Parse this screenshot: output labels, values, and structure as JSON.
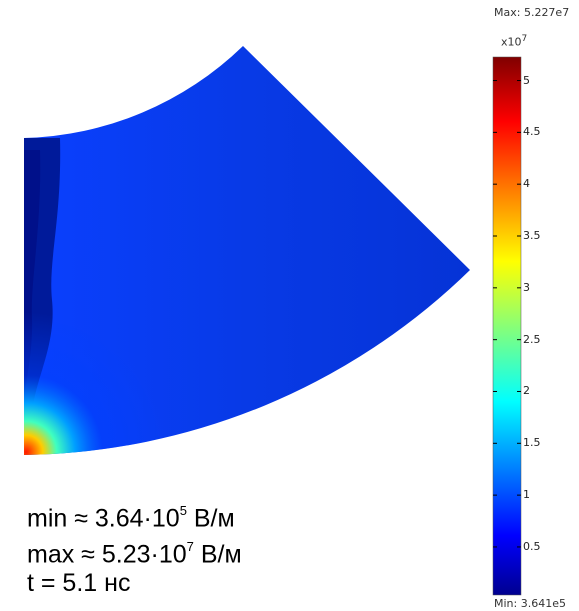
{
  "chart_data": {
    "type": "heatmap",
    "colorbar": {
      "max_label": "Max: 5.227e7",
      "min_label": "Min: 3.641e5",
      "scale_base": "x10",
      "scale_exp": "7",
      "range": [
        0.03641,
        5.227
      ],
      "ticks": [
        "0.5",
        "1",
        "1.5",
        "2",
        "2.5",
        "3",
        "3.5",
        "4",
        "4.5",
        "5"
      ],
      "colormap": "jet"
    },
    "field": {
      "background_value": 0.35,
      "hotspot_max_value": 5.227,
      "domain": "quarter annular sector"
    },
    "annotations": {
      "min_prefix": "min ≈ 3.64·10",
      "min_exp": "5",
      "min_unit": "В/м",
      "max_prefix": "max ≈ 5.23·10",
      "max_exp": "7",
      "max_unit": "В/м",
      "time": "t = 5.1 нс"
    }
  },
  "colors": {
    "jet_dark_blue": "#00008f",
    "jet_blue": "#0a3fe8",
    "jet_cyan": "#00ffff",
    "jet_yellow": "#ffff00",
    "jet_red": "#ff0000",
    "jet_dark_red": "#800000"
  }
}
